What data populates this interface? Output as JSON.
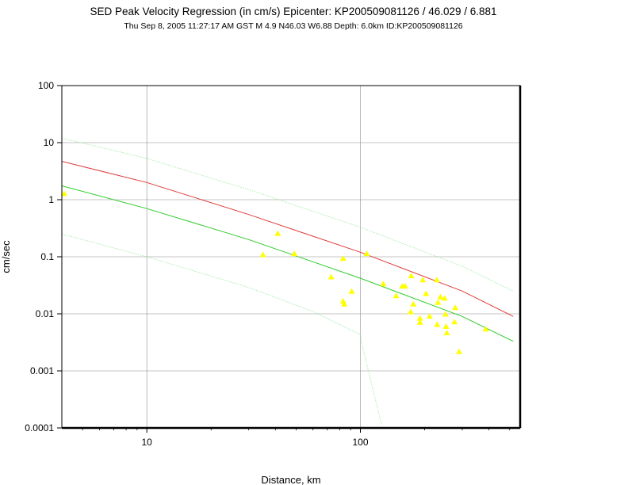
{
  "chart_data": {
    "type": "scatter",
    "title": "SED Peak Velocity Regression (in cm/s) Epicenter: KP200509081126 / 46.029 / 6.881",
    "subtitle": "Thu Sep  8, 2005 11:27:17 AM GST   M 4.9   N46.03 W6.88   Depth: 6.0km   ID:KP200509081126",
    "xlabel": "Distance, km",
    "ylabel": "cm/sec",
    "x_scale": "log",
    "y_scale": "log",
    "xlim": [
      4,
      560
    ],
    "ylim": [
      0.0001,
      100
    ],
    "x_tick_labels": [
      "10",
      "100"
    ],
    "x_tick_values": [
      10,
      100
    ],
    "y_tick_labels": [
      "100",
      "10",
      "1",
      "0.1",
      "0.01",
      "0.001",
      "0.0001"
    ],
    "y_tick_values": [
      100,
      10,
      1,
      0.1,
      0.01,
      0.001,
      0.0001
    ],
    "grid": true,
    "colors": {
      "points": "#ffff00",
      "upper_line": "#e03c3c",
      "median_line": "#2ecc2e",
      "bounds_line": "#9ee69e",
      "grid": "#8c8c8c",
      "frame": "#000000"
    },
    "series": [
      {
        "role": "regression-upper",
        "style": "line",
        "x": [
          4,
          10,
          30,
          100,
          300,
          520
        ],
        "y": [
          4.7,
          2.0,
          0.55,
          0.12,
          0.025,
          0.009
        ]
      },
      {
        "role": "regression-median",
        "style": "line",
        "x": [
          4,
          10,
          30,
          100,
          300,
          520
        ],
        "y": [
          1.75,
          0.7,
          0.2,
          0.042,
          0.009,
          0.0033
        ]
      },
      {
        "role": "upper-bound",
        "style": "line",
        "x": [
          4,
          10,
          30,
          100,
          300,
          520
        ],
        "y": [
          12.0,
          5.3,
          1.5,
          0.33,
          0.068,
          0.025
        ]
      },
      {
        "role": "lower-bound",
        "style": "line",
        "x": [
          4,
          10,
          30,
          60,
          100,
          102,
          126
        ],
        "y": [
          0.25,
          0.1,
          0.029,
          0.011,
          0.0043,
          0.0028,
          0.00011
        ]
      },
      {
        "role": "observations",
        "style": "markers",
        "x": [
          4.1,
          35,
          41,
          49,
          73,
          83,
          83,
          84,
          91,
          107,
          128,
          147,
          157,
          162,
          172,
          173,
          177,
          190,
          190,
          196,
          203,
          211,
          228,
          229,
          231,
          237,
          248,
          250,
          252,
          254,
          276,
          278,
          290,
          386
        ],
        "y": [
          1.3,
          0.11,
          0.26,
          0.115,
          0.045,
          0.095,
          0.017,
          0.015,
          0.025,
          0.115,
          0.034,
          0.021,
          0.031,
          0.031,
          0.011,
          0.047,
          0.015,
          0.0072,
          0.0085,
          0.04,
          0.023,
          0.0092,
          0.04,
          0.0066,
          0.016,
          0.02,
          0.019,
          0.01,
          0.0061,
          0.0047,
          0.0073,
          0.013,
          0.0022,
          0.0055
        ]
      }
    ]
  }
}
